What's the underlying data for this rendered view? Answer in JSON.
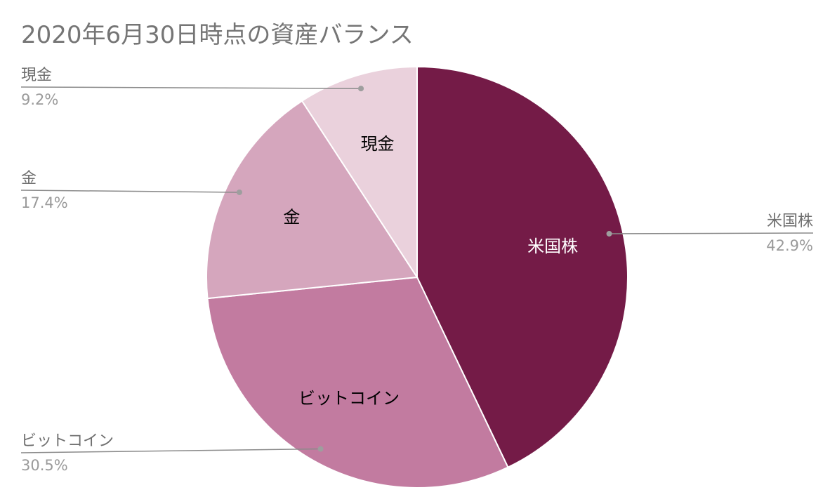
{
  "chart_data": {
    "type": "pie",
    "title": "2020年6月30日時点の資産バランス",
    "legend": "callouts",
    "slices": [
      {
        "label": "米国株",
        "percent_label": "42.9%",
        "value": 42.9,
        "color": "#741b47",
        "label_color": "#ffffff"
      },
      {
        "label": "ビットコイン",
        "percent_label": "30.5%",
        "value": 30.5,
        "color": "#c27ba0",
        "label_color": "#000000"
      },
      {
        "label": "金",
        "percent_label": "17.4%",
        "value": 17.4,
        "color": "#d5a6bd",
        "label_color": "#000000"
      },
      {
        "label": "現金",
        "percent_label": "9.2%",
        "value": 9.2,
        "color": "#ead1dc",
        "label_color": "#000000"
      }
    ]
  }
}
